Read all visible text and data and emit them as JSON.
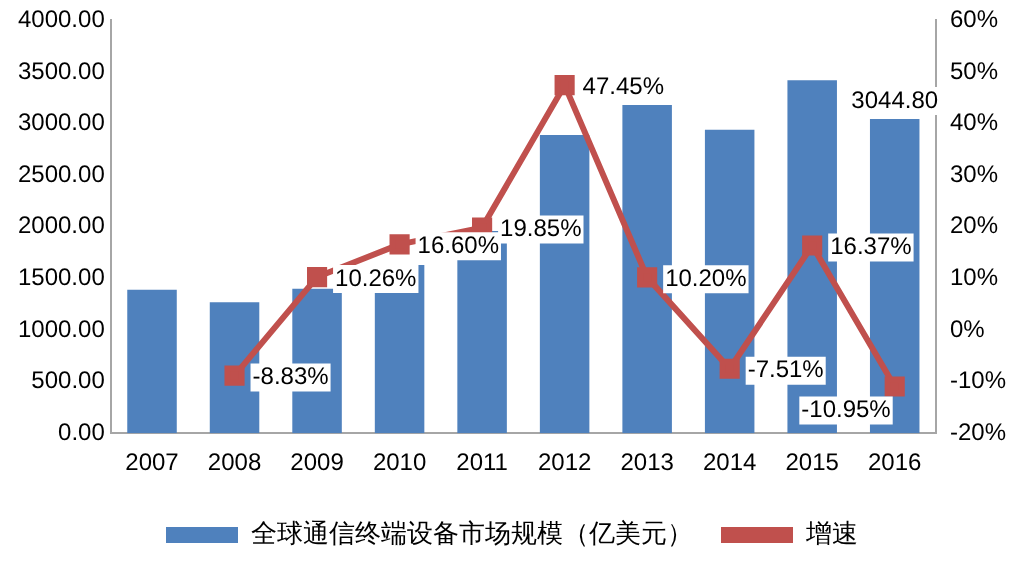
{
  "chart_data": {
    "type": "bar",
    "categories": [
      "2007",
      "2008",
      "2009",
      "2010",
      "2011",
      "2012",
      "2013",
      "2014",
      "2015",
      "2016"
    ],
    "series": [
      {
        "name": "全球通信终端设备市场规模（亿美元）",
        "color": "#4f81bd",
        "values": [
          1390,
          1270,
          1400,
          1630,
          1960,
          2890,
          3180,
          2940,
          3420,
          3044.8
        ],
        "value_labels": [
          null,
          null,
          null,
          null,
          null,
          null,
          null,
          null,
          null,
          "3044.80"
        ]
      },
      {
        "name": "增速",
        "type": "line",
        "axis": "y2",
        "color": "#c0504d",
        "marker": "square",
        "values": [
          null,
          -8.83,
          10.26,
          16.6,
          19.85,
          47.45,
          10.2,
          -7.51,
          16.37,
          -10.95
        ],
        "value_labels": [
          null,
          "-8.83%",
          "10.26%",
          "16.60%",
          "19.85%",
          "47.45%",
          "10.20%",
          "-7.51%",
          "16.37%",
          "-10.95%"
        ]
      }
    ],
    "ylim": [
      0,
      4000
    ],
    "yticks": [
      {
        "value": 0,
        "label": "0.00"
      },
      {
        "value": 500,
        "label": "500.00"
      },
      {
        "value": 1000,
        "label": "1000.00"
      },
      {
        "value": 1500,
        "label": "1500.00"
      },
      {
        "value": 2000,
        "label": "2000.00"
      },
      {
        "value": 2500,
        "label": "2500.00"
      },
      {
        "value": 3000,
        "label": "3000.00"
      },
      {
        "value": 3500,
        "label": "3500.00"
      },
      {
        "value": 4000,
        "label": "4000.00"
      }
    ],
    "y2lim": [
      -20,
      60
    ],
    "y2ticks": [
      {
        "value": -20,
        "label": "-20%"
      },
      {
        "value": -10,
        "label": "-10%"
      },
      {
        "value": 0,
        "label": "0%"
      },
      {
        "value": 10,
        "label": "10%"
      },
      {
        "value": 20,
        "label": "20%"
      },
      {
        "value": 30,
        "label": "30%"
      },
      {
        "value": 40,
        "label": "40%"
      },
      {
        "value": 50,
        "label": "50%"
      },
      {
        "value": 60,
        "label": "60%"
      }
    ],
    "grid": false,
    "legend": "bottom"
  }
}
